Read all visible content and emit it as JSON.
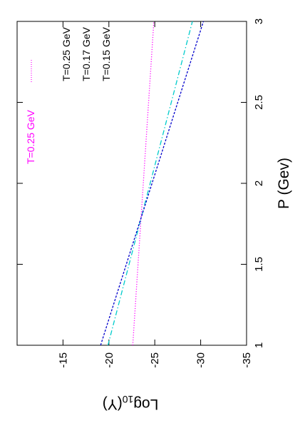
{
  "chart_data": {
    "type": "line",
    "orientation": "rotated-90-degrees",
    "xlabel": "P (Gev)",
    "ylabel_parts": {
      "prefix": "Log",
      "subscript": "10",
      "suffix": "(Y)"
    },
    "xlim": [
      1,
      3
    ],
    "ylim": [
      -35,
      -10
    ],
    "x_ticks": [
      {
        "value": 1,
        "label": "1"
      },
      {
        "value": 1.5,
        "label": "1.5"
      },
      {
        "value": 2,
        "label": "2"
      },
      {
        "value": 2.5,
        "label": "2.5"
      },
      {
        "value": 3,
        "label": "3"
      }
    ],
    "y_ticks": [
      {
        "value": -15,
        "label": "-15"
      },
      {
        "value": -20,
        "label": "-20"
      },
      {
        "value": -25,
        "label": "-25"
      },
      {
        "value": -30,
        "label": "-30"
      },
      {
        "value": -35,
        "label": "-35"
      }
    ],
    "grid": false,
    "legend_placement": "top-right",
    "series": [
      {
        "name": "T=0.25 GeV",
        "color": "#ff00ff",
        "dash": "dotted",
        "x": [
          1,
          3
        ],
        "y": [
          -22.6,
          -24.9
        ],
        "label": "T=0.25 GeV",
        "label_color": "#ff00ff"
      },
      {
        "name": "T=0.17 GeV",
        "color": "#00cccc",
        "dash": "dashdot",
        "x": [
          1,
          3
        ],
        "y": [
          -19.9,
          -29.1
        ],
        "label": "T=0.17 GeV",
        "label_color": "#000000"
      },
      {
        "name": "T=0.15 GeV",
        "color": "#0000cc",
        "dash": "dashed",
        "x": [
          1,
          3
        ],
        "y": [
          -19.1,
          -30.3
        ],
        "label": "T=0.15 GeV",
        "label_color": "#000000"
      }
    ],
    "annotations": [
      {
        "text": "T=0.25 GeV"
      },
      {
        "text": "T=0.17 GeV"
      },
      {
        "text": "T=0.15 GeV"
      }
    ]
  }
}
